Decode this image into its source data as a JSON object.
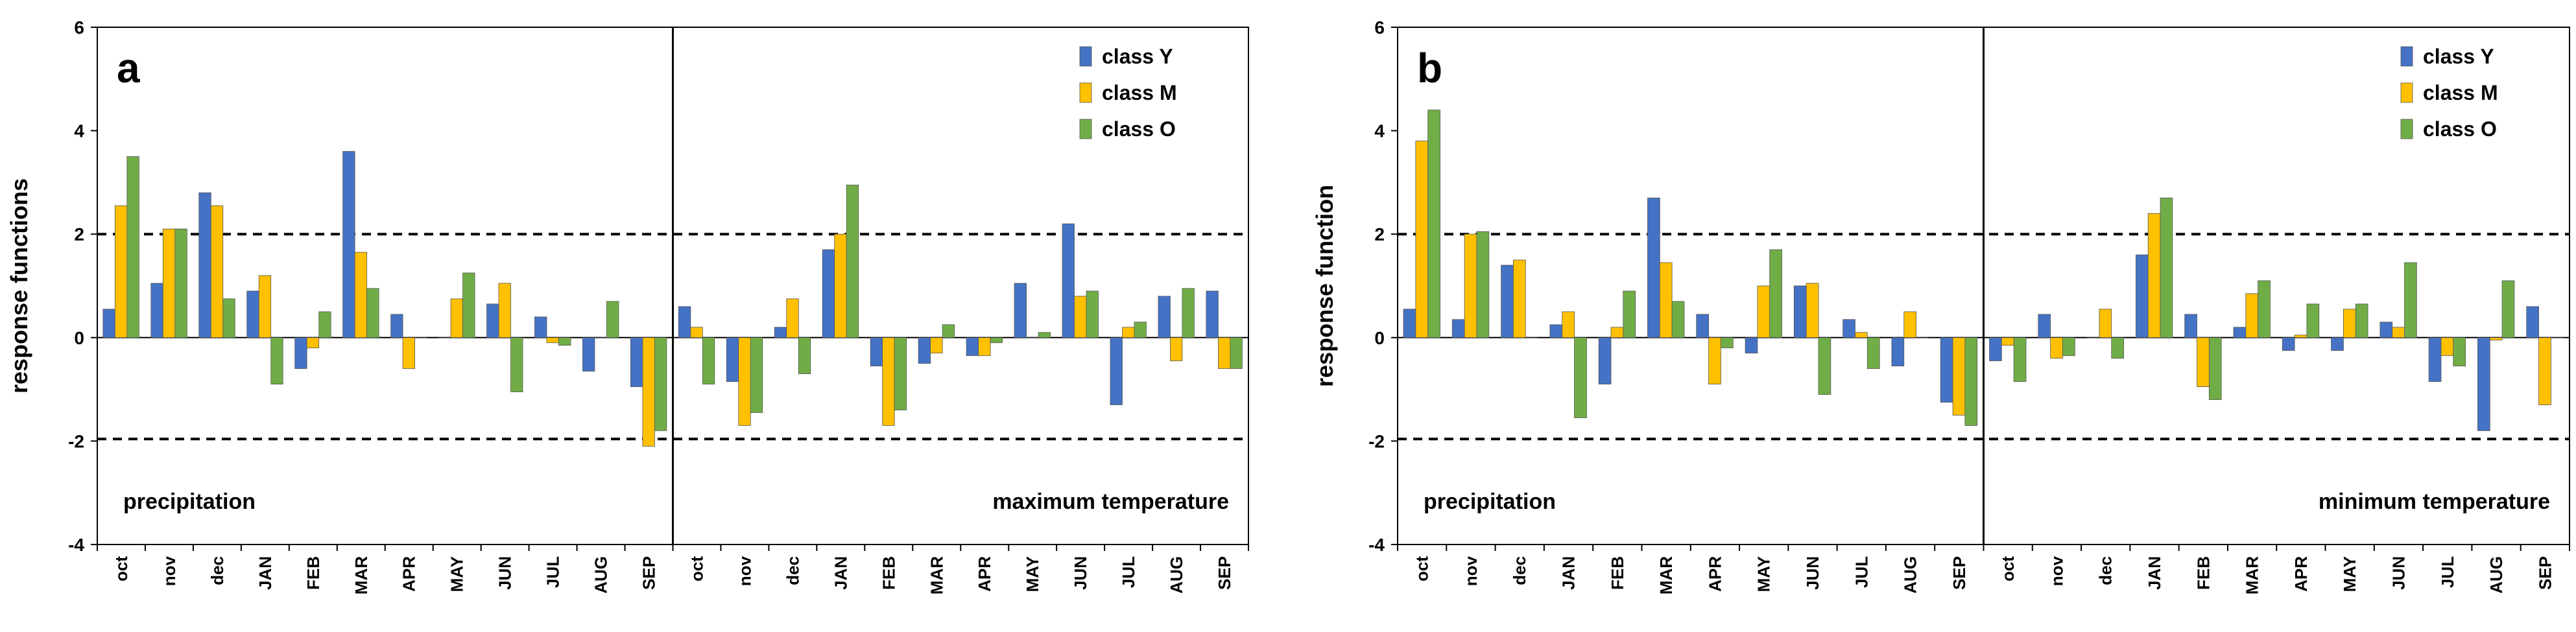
{
  "colors": {
    "Y": "#4472c4",
    "M": "#ffc000",
    "O": "#70ad47",
    "frame": "#000000",
    "threshold": "#000000"
  },
  "chart_data": [
    {
      "type": "bar",
      "panel_label": "a",
      "ylabel": "response functions",
      "ylim": [
        -4,
        6
      ],
      "yticks": [
        -4,
        -2,
        0,
        2,
        4,
        6
      ],
      "thresholds": [
        2,
        -1.96
      ],
      "grid": false,
      "legend_position": "top-right",
      "legend": [
        "class Y",
        "class M",
        "class O"
      ],
      "section_labels": [
        "precipitation",
        "maximum  temperature"
      ],
      "categories": [
        "oct",
        "nov",
        "dec",
        "JAN",
        "FEB",
        "MAR",
        "APR",
        "MAY",
        "JUN",
        "JUL",
        "AUG",
        "SEP",
        "oct",
        "nov",
        "dec",
        "JAN",
        "FEB",
        "MAR",
        "APR",
        "MAY",
        "JUN",
        "JUL",
        "AUG",
        "SEP"
      ],
      "series": [
        {
          "name": "class Y",
          "key": "Y",
          "values": [
            0.55,
            1.05,
            2.8,
            0.9,
            -0.6,
            3.6,
            0.45,
            0,
            0.65,
            0.4,
            -0.65,
            -0.95,
            0.6,
            -0.85,
            0.2,
            1.7,
            -0.55,
            -0.5,
            -0.35,
            1.05,
            2.2,
            -1.3,
            0.8,
            0.9
          ]
        },
        {
          "name": "class M",
          "key": "M",
          "values": [
            2.55,
            2.1,
            2.55,
            1.2,
            -0.2,
            1.65,
            -0.6,
            0.75,
            1.05,
            -0.1,
            0,
            -2.1,
            0.2,
            -1.7,
            0.75,
            2.0,
            -1.7,
            -0.3,
            -0.35,
            0,
            0.8,
            0.2,
            -0.45,
            -0.6
          ]
        },
        {
          "name": "class O",
          "key": "O",
          "values": [
            3.5,
            2.1,
            0.75,
            -0.9,
            0.5,
            0.95,
            0,
            1.25,
            -1.05,
            -0.15,
            0.7,
            -1.8,
            -0.9,
            -1.45,
            -0.7,
            2.95,
            -1.4,
            0.25,
            -0.1,
            0.1,
            0.9,
            0.3,
            0.95,
            -0.6
          ]
        }
      ]
    },
    {
      "type": "bar",
      "panel_label": "b",
      "ylabel": "response function",
      "ylim": [
        -4,
        6
      ],
      "yticks": [
        -4,
        -2,
        0,
        2,
        4,
        6
      ],
      "thresholds": [
        2,
        -1.96
      ],
      "grid": false,
      "legend_position": "top-right",
      "legend": [
        "class Y",
        "class M",
        "class O"
      ],
      "section_labels": [
        "precipitation",
        "minimum  temperature"
      ],
      "categories": [
        "oct",
        "nov",
        "dec",
        "JAN",
        "FEB",
        "MAR",
        "APR",
        "MAY",
        "JUN",
        "JUL",
        "AUG",
        "SEP",
        "oct",
        "nov",
        "dec",
        "JAN",
        "FEB",
        "MAR",
        "APR",
        "MAY",
        "JUN",
        "JUL",
        "AUG",
        "SEP"
      ],
      "series": [
        {
          "name": "class Y",
          "key": "Y",
          "values": [
            0.55,
            0.35,
            1.4,
            0.25,
            -0.9,
            2.7,
            0.45,
            -0.3,
            1.0,
            0.35,
            -0.55,
            -1.25,
            -0.45,
            0.45,
            0,
            1.6,
            0.45,
            0.2,
            -0.25,
            -0.25,
            0.3,
            -0.85,
            -1.8,
            0.6
          ]
        },
        {
          "name": "class M",
          "key": "M",
          "values": [
            3.8,
            2.0,
            1.5,
            0.5,
            0.2,
            1.45,
            -0.9,
            1.0,
            1.05,
            0.1,
            0.5,
            -1.5,
            -0.15,
            -0.4,
            0.55,
            2.4,
            -0.95,
            0.85,
            0.05,
            0.55,
            0.2,
            -0.35,
            -0.05,
            -1.3
          ]
        },
        {
          "name": "class O",
          "key": "O",
          "values": [
            4.4,
            2.05,
            0,
            -1.55,
            0.9,
            0.7,
            -0.2,
            1.7,
            -1.1,
            -0.6,
            0,
            -1.7,
            -0.85,
            -0.35,
            -0.4,
            2.7,
            -1.2,
            1.1,
            0.65,
            0.65,
            1.45,
            -0.55,
            1.1,
            0
          ]
        }
      ]
    }
  ]
}
